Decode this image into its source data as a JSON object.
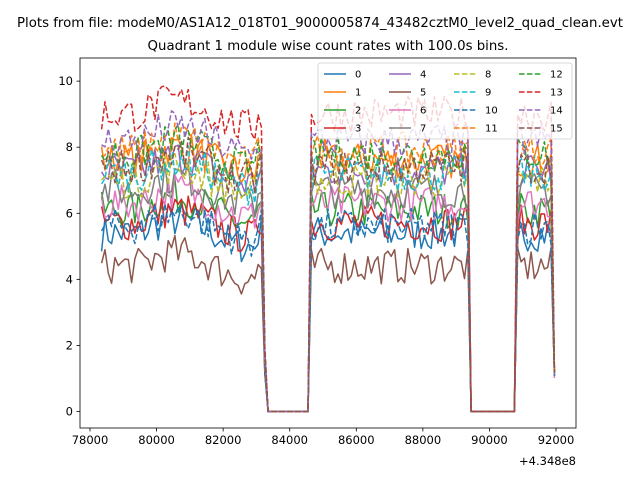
{
  "suptitle": "Plots from file: modeM0/AS1A12_018T01_9000005874_43482cztM0_level2_quad_clean.evt",
  "chart_data": {
    "type": "line",
    "title": "Quadrant 1 module wise count rates with 100.0s bins.",
    "xlabel": "",
    "ylabel": "",
    "x_offset_label": "+4.348e8",
    "xlim": [
      77700,
      92600
    ],
    "ylim": [
      -0.5,
      10.7
    ],
    "x_ticks": [
      78000,
      80000,
      82000,
      84000,
      86000,
      88000,
      90000,
      92000
    ],
    "y_ticks": [
      0,
      2,
      4,
      6,
      8,
      10
    ],
    "legend_position": "upper-right",
    "legend_columns": 4,
    "bin_width": 100,
    "segments": [
      {
        "start": 78350,
        "end": 83250
      },
      {
        "start": 84650,
        "end": 89400
      },
      {
        "start": 90850,
        "end": 91950
      }
    ],
    "series": [
      {
        "name": "0",
        "color": "#1f77b4",
        "dash": "solid",
        "level": 5.4
      },
      {
        "name": "1",
        "color": "#ff7f0e",
        "dash": "solid",
        "level": 7.6
      },
      {
        "name": "2",
        "color": "#2ca02c",
        "dash": "solid",
        "level": 6.1
      },
      {
        "name": "3",
        "color": "#d62728",
        "dash": "solid",
        "level": 5.7
      },
      {
        "name": "4",
        "color": "#9467bd",
        "dash": "solid",
        "level": 7.3
      },
      {
        "name": "5",
        "color": "#8c564b",
        "dash": "solid",
        "level": 4.4
      },
      {
        "name": "6",
        "color": "#e377c2",
        "dash": "solid",
        "level": 6.3
      },
      {
        "name": "7",
        "color": "#7f7f7f",
        "dash": "solid",
        "level": 6.7
      },
      {
        "name": "8",
        "color": "#bcbd22",
        "dash": "dashed",
        "level": 7.0
      },
      {
        "name": "9",
        "color": "#17becf",
        "dash": "dashed",
        "level": 7.2
      },
      {
        "name": "10",
        "color": "#1f77b4",
        "dash": "dashed",
        "level": 5.6
      },
      {
        "name": "11",
        "color": "#ff7f0e",
        "dash": "dashed",
        "level": 7.9
      },
      {
        "name": "12",
        "color": "#2ca02c",
        "dash": "dashed",
        "level": 7.8
      },
      {
        "name": "13",
        "color": "#d62728",
        "dash": "dashed",
        "level": 9.0
      },
      {
        "name": "14",
        "color": "#9467bd",
        "dash": "dashed",
        "level": 8.2
      },
      {
        "name": "15",
        "color": "#8c564b",
        "dash": "dashed",
        "level": 7.4
      }
    ]
  }
}
